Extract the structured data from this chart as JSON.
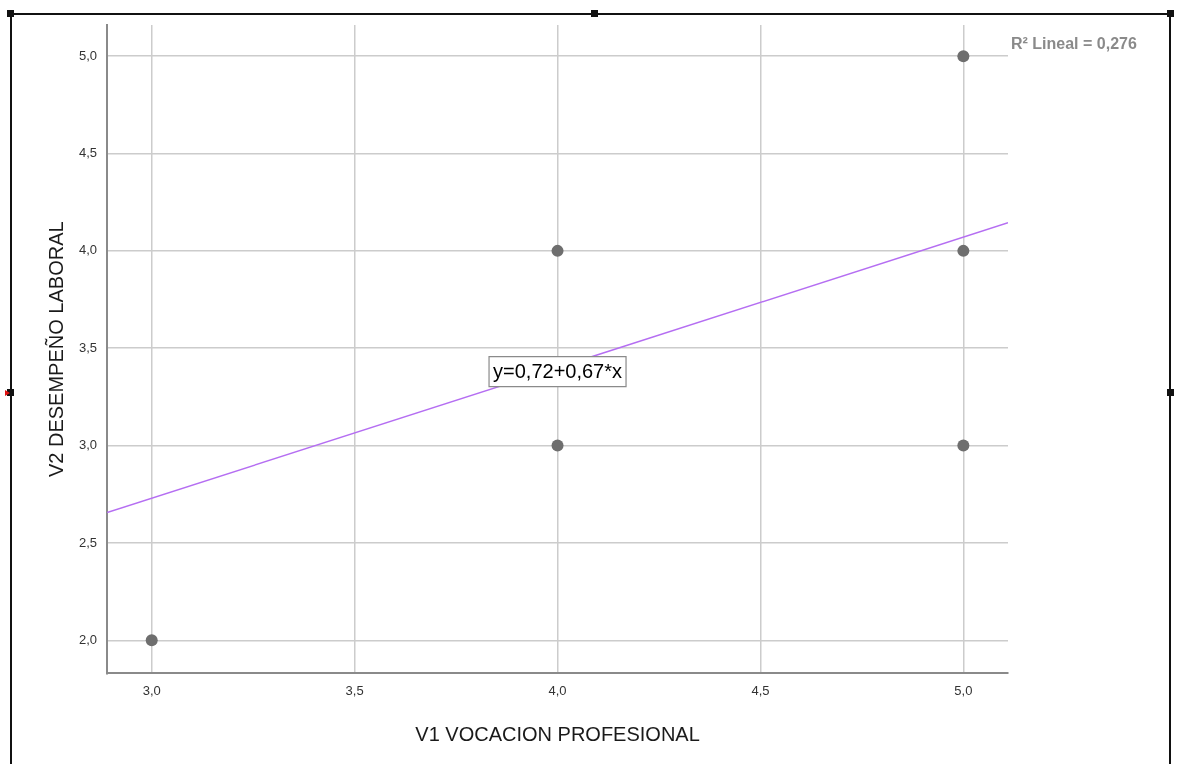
{
  "chart_data": {
    "type": "scatter",
    "xlabel": "V1 VOCACION PROFESIONAL",
    "ylabel": "V2 DESEMPEÑO LABORAL",
    "series": [
      {
        "type": "scatter",
        "color": "#6e6e6e",
        "x": [
          3,
          4,
          4,
          5,
          5,
          5
        ],
        "values": [
          2,
          4,
          3,
          5,
          4,
          3
        ]
      },
      {
        "type": "line",
        "color": "#b56ef2",
        "marker": "none",
        "x": [
          2.89,
          5.11
        ],
        "values": [
          2.656,
          4.144
        ]
      }
    ],
    "xlim": [
      2.89,
      5.11
    ],
    "ylim": [
      1.83,
      5.16
    ],
    "xticks": [
      {
        "value": 3,
        "label": "3,0"
      },
      {
        "value": 3.5,
        "label": "3,5"
      },
      {
        "value": 4,
        "label": "4,0"
      },
      {
        "value": 4.5,
        "label": "4,5"
      },
      {
        "value": 5,
        "label": "5,0"
      }
    ],
    "yticks": [
      {
        "value": 2,
        "label": "2,0"
      },
      {
        "value": 2.5,
        "label": "2,5"
      },
      {
        "value": 3,
        "label": "3,0"
      },
      {
        "value": 3.5,
        "label": "3,5"
      },
      {
        "value": 4,
        "label": "4,0"
      },
      {
        "value": 4.5,
        "label": "4,5"
      },
      {
        "value": 5,
        "label": "5,0"
      }
    ],
    "grid": true,
    "marker": "circle",
    "annotations": [
      "R² Lineal = 0,276",
      {
        "text": "y=0,72+0,67*x",
        "x": 4,
        "y": 3.38
      }
    ]
  }
}
